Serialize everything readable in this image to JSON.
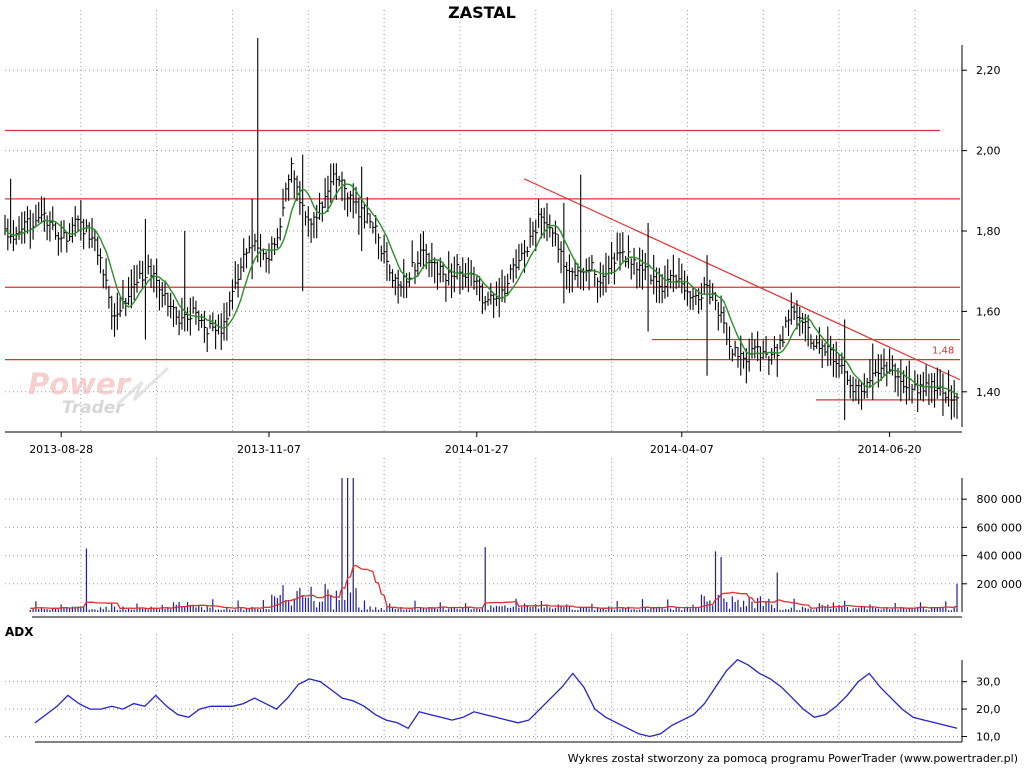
{
  "chart_data": [
    {
      "type": "ohlc",
      "title": "ZASTAL",
      "x_labels": [
        "2013-08-28",
        "2013-11-07",
        "2014-01-27",
        "2014-04-07",
        "2014-06-20"
      ],
      "y_ticks": [
        "1,40",
        "1,60",
        "1,80",
        "2,00",
        "2,20"
      ],
      "ylim": [
        1.3,
        2.3
      ],
      "grid": true,
      "series": [
        {
          "kind": "close",
          "color": "#000000",
          "anchors": [
            1.8,
            1.78,
            1.82,
            1.84,
            1.8,
            1.78,
            1.82,
            1.8,
            1.74,
            1.6,
            1.62,
            1.68,
            1.7,
            1.66,
            1.6,
            1.58,
            1.6,
            1.56,
            1.55,
            1.62,
            1.74,
            1.76,
            1.72,
            1.8,
            1.96,
            1.86,
            1.82,
            1.9,
            1.94,
            1.88,
            1.84,
            1.82,
            1.72,
            1.66,
            1.7,
            1.74,
            1.72,
            1.68,
            1.7,
            1.7,
            1.64,
            1.62,
            1.66,
            1.72,
            1.76,
            1.84,
            1.8,
            1.72,
            1.7,
            1.72,
            1.68,
            1.72,
            1.74,
            1.72,
            1.7,
            1.66,
            1.68,
            1.66,
            1.64,
            1.66,
            1.6,
            1.5,
            1.48,
            1.5,
            1.48,
            1.5,
            1.6,
            1.58,
            1.52,
            1.5,
            1.48,
            1.42,
            1.4,
            1.44,
            1.46,
            1.44,
            1.42,
            1.4,
            1.42,
            1.38,
            1.4
          ]
        },
        {
          "kind": "moving-average",
          "color": "#2a8f2a"
        }
      ],
      "horizontal_lines": [
        2.05,
        1.88,
        1.66,
        1.48,
        1.53,
        1.38
      ],
      "trend_line": {
        "from": {
          "x": "2014-03",
          "y": 1.93
        },
        "to": {
          "x": "2014-09",
          "y": 1.43
        }
      },
      "annotations": [
        {
          "text": "1,48",
          "y": 1.48
        }
      ],
      "line_color": "#e03030"
    },
    {
      "type": "bar",
      "title": "",
      "y_ticks": [
        "200 000",
        "400 000",
        "600 000",
        "800 000"
      ],
      "ylim": [
        0,
        950000
      ],
      "grid": true,
      "bar_color": "#1c1c9c",
      "average_color": "#e03030",
      "spikes": [
        {
          "day": 29,
          "value": 450000
        },
        {
          "day": 120,
          "value": 950000
        },
        {
          "day": 122,
          "value": 950000
        },
        {
          "day": 124,
          "value": 950000
        },
        {
          "day": 171,
          "value": 460000
        },
        {
          "day": 253,
          "value": 430000
        },
        {
          "day": 255,
          "value": 390000
        },
        {
          "day": 275,
          "value": 280000
        },
        {
          "day": 347,
          "value": 200000
        }
      ]
    },
    {
      "type": "line",
      "title": "ADX",
      "y_ticks": [
        "10,0",
        "20,0",
        "30,0"
      ],
      "ylim": [
        8,
        43
      ],
      "grid": true,
      "series": [
        {
          "name": "ADX",
          "color": "#2222cc",
          "values": [
            15,
            18,
            21,
            25,
            22,
            20,
            20,
            21,
            20,
            22,
            21,
            25,
            21,
            18,
            17,
            20,
            21,
            21,
            21,
            22,
            24,
            22,
            20,
            24,
            29,
            31,
            30,
            27,
            24,
            23,
            21,
            18,
            16,
            15,
            13,
            19,
            18,
            17,
            16,
            17,
            19,
            18,
            17,
            16,
            15,
            16,
            20,
            24,
            28,
            33,
            28,
            20,
            17,
            15,
            13,
            11,
            10,
            11,
            14,
            16,
            18,
            22,
            28,
            34,
            38,
            36,
            33,
            31,
            28,
            24,
            20,
            17,
            18,
            21,
            25,
            30,
            33,
            28,
            24,
            20,
            17,
            16,
            15,
            14,
            13
          ]
        }
      ]
    }
  ],
  "footer": "Wykres został stworzony za pomocą programu PowerTrader (www.powertrader.pl)",
  "logo": {
    "word1": "Power",
    "word2": "Trader"
  }
}
